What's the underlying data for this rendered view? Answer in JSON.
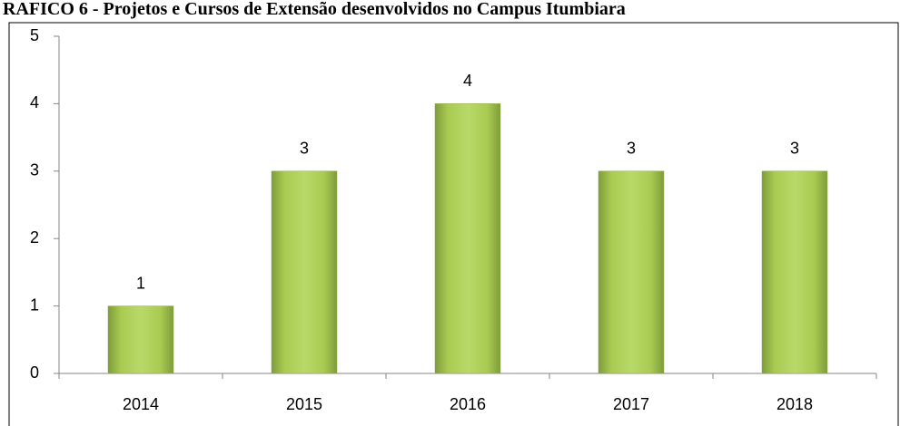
{
  "chart_data": {
    "type": "bar",
    "title": "RAFICO 6 - Projetos e Cursos de Extensão desenvolvidos no Campus Itumbiara",
    "categories": [
      "2014",
      "2015",
      "2016",
      "2017",
      "2018"
    ],
    "values": [
      1,
      3,
      4,
      3,
      3
    ],
    "color": "#9bbb59",
    "ylim": [
      0,
      5
    ],
    "yticks": [
      0,
      1,
      2,
      3,
      4,
      5
    ],
    "grid": false
  }
}
